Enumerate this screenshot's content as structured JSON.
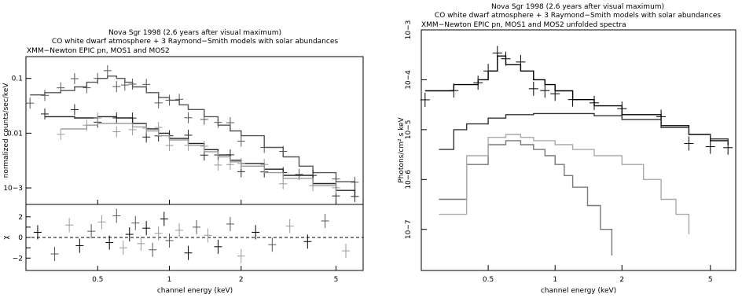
{
  "chart_data": [
    {
      "type": "line",
      "title_lines": [
        "Nova Sgr 1998 (2.6 years after visual maximum)",
        "CO white dwarf atmosphere + 3 Raymond−Smith models with solar abundances",
        "XMM−Newton EPIC pn, MOS1 and MOS2"
      ],
      "xlabel": "channel energy (keV)",
      "x_scale": "log",
      "xlim": [
        0.25,
        6.5
      ],
      "x_ticks": [
        0.5,
        1,
        2,
        5
      ],
      "x_tick_labels": [
        "0.5",
        "1",
        "2",
        "5"
      ],
      "top_panel": {
        "ylabel": "normalized counts/sec/keV",
        "y_scale": "log",
        "ylim": [
          0.0005,
          0.25
        ],
        "y_ticks": [
          0.1,
          0.01,
          0.001
        ],
        "y_tick_labels": [
          "0.1",
          "0.01",
          "10−3"
        ],
        "series": [
          {
            "color": "#555555",
            "x": [
              0.26,
              0.3,
              0.35,
              0.4,
              0.45,
              0.5,
              0.55,
              0.6,
              0.65,
              0.7,
              0.8,
              0.9,
              1.0,
              1.1,
              1.2,
              1.4,
              1.6,
              1.8,
              2.0,
              2.5,
              3.0,
              3.5,
              4.0,
              5.0,
              6.0
            ],
            "y": [
              0.05,
              0.055,
              0.06,
              0.07,
              0.085,
              0.1,
              0.11,
              0.1,
              0.085,
              0.07,
              0.055,
              0.045,
              0.04,
              0.033,
              0.027,
              0.02,
              0.014,
              0.011,
              0.009,
              0.0055,
              0.0037,
              0.0025,
              0.0019,
              0.0013,
              0.0009
            ]
          },
          {
            "color": "#222222",
            "x": [
              0.3,
              0.4,
              0.5,
              0.6,
              0.7,
              0.8,
              0.9,
              1.0,
              1.2,
              1.4,
              1.6,
              1.8,
              2.0,
              2.5,
              3.0,
              4.0,
              5.0,
              6.0
            ],
            "y": [
              0.02,
              0.019,
              0.02,
              0.019,
              0.015,
              0.012,
              0.01,
              0.008,
              0.0065,
              0.005,
              0.004,
              0.0032,
              0.0028,
              0.0022,
              0.0017,
              0.0012,
              0.0009,
              0.0007
            ]
          },
          {
            "color": "#999999",
            "x": [
              0.35,
              0.45,
              0.5,
              0.6,
              0.7,
              0.8,
              0.9,
              1.0,
              1.2,
              1.4,
              1.6,
              1.8,
              2.0,
              2.5,
              3.0,
              4.0,
              5.0
            ],
            "y": [
              0.012,
              0.014,
              0.015,
              0.015,
              0.013,
              0.011,
              0.009,
              0.0075,
              0.006,
              0.0046,
              0.0037,
              0.003,
              0.0025,
              0.0019,
              0.0015,
              0.0011,
              0.0008
            ]
          }
        ]
      },
      "bottom_panel": {
        "ylabel": "χ",
        "ylim": [
          -3.2,
          3.2
        ],
        "y_ticks": [
          2,
          1,
          0,
          -1,
          -2
        ],
        "y_tick_labels": [
          "2",
          "",
          "0",
          "",
          "−2"
        ],
        "reference_line": 0,
        "residuals_x": [
          0.28,
          0.33,
          0.38,
          0.42,
          0.47,
          0.52,
          0.56,
          0.6,
          0.64,
          0.68,
          0.72,
          0.76,
          0.8,
          0.85,
          0.9,
          0.95,
          1.0,
          1.1,
          1.2,
          1.3,
          1.45,
          1.6,
          1.8,
          2.0,
          2.3,
          2.7,
          3.2,
          3.8,
          4.5,
          5.5
        ],
        "residuals_y": [
          0.5,
          -1.6,
          1.2,
          -0.8,
          0.6,
          1.5,
          -0.5,
          2.1,
          -1.0,
          0.3,
          1.4,
          -0.6,
          0.9,
          -1.2,
          0.4,
          1.8,
          -0.3,
          0.7,
          -1.5,
          1.0,
          0.2,
          -0.9,
          1.3,
          -1.8,
          0.5,
          -0.7,
          1.1,
          -0.4,
          1.6,
          -1.3
        ]
      }
    },
    {
      "type": "line",
      "title_lines": [
        "Nova Sgr 1998 (2.6 years after visual maximum)",
        "CO white dwarf atmosphere + 3 Raymond−Smith models with solar abundances",
        "XMM−Newton EPIC pn, MOS1 and MOS2 unfolded spectra"
      ],
      "xlabel": "channel energy (keV)",
      "ylabel": "Photons/cm² s keV",
      "x_scale": "log",
      "xlim": [
        0.25,
        6.5
      ],
      "x_ticks": [
        0.5,
        1,
        2,
        5
      ],
      "x_tick_labels": [
        "0.5",
        "1",
        "2",
        "5"
      ],
      "y_scale": "log",
      "ylim": [
        1.5e-08,
        0.001
      ],
      "y_ticks": [
        0.001,
        0.0001,
        1e-05,
        1e-06,
        1e-07
      ],
      "y_tick_labels": [
        "10−3",
        "10−4",
        "10−5",
        "10−6",
        "10−7"
      ],
      "series": [
        {
          "color": "#000000",
          "x": [
            0.26,
            0.35,
            0.45,
            0.5,
            0.55,
            0.6,
            0.7,
            0.8,
            0.9,
            1.0,
            1.2,
            1.5,
            2.0,
            3.0,
            4.0,
            5.0,
            6.0
          ],
          "y": [
            6e-05,
            8e-05,
            0.0001,
            0.00015,
            0.0003,
            0.0002,
            0.00015,
            0.0001,
            8e-05,
            6e-05,
            4e-05,
            3e-05,
            2e-05,
            1.2e-05,
            8e-06,
            6e-06,
            5e-06
          ]
        },
        {
          "color": "#333333",
          "x": [
            0.3,
            0.35,
            0.4,
            0.5,
            0.6,
            0.8,
            1.0,
            1.5,
            2.0,
            3.0,
            4.0,
            5.0,
            6.0
          ],
          "y": [
            4e-06,
            1e-05,
            1.3e-05,
            1.7e-05,
            2e-05,
            2.1e-05,
            2.1e-05,
            1.9e-05,
            1.6e-05,
            1.1e-05,
            8e-06,
            6.5e-06,
            5.5e-06
          ]
        },
        {
          "color": "#777777",
          "x": [
            0.3,
            0.4,
            0.5,
            0.6,
            0.7,
            0.8,
            0.9,
            1.0,
            1.1,
            1.2,
            1.4,
            1.6,
            1.8
          ],
          "y": [
            4e-07,
            2e-06,
            5e-06,
            6e-06,
            5e-06,
            4e-06,
            3e-06,
            2e-06,
            1.2e-06,
            7e-07,
            3e-07,
            1e-07,
            3e-08
          ]
        },
        {
          "color": "#aaaaaa",
          "x": [
            0.3,
            0.4,
            0.5,
            0.6,
            0.7,
            0.8,
            1.0,
            1.2,
            1.5,
            2.0,
            2.5,
            3.0,
            3.5,
            4.0
          ],
          "y": [
            2e-07,
            3e-06,
            7e-06,
            8e-06,
            7e-06,
            6e-06,
            5e-06,
            4e-06,
            3e-06,
            2e-06,
            1e-06,
            4e-07,
            2e-07,
            8e-08
          ]
        }
      ]
    }
  ]
}
